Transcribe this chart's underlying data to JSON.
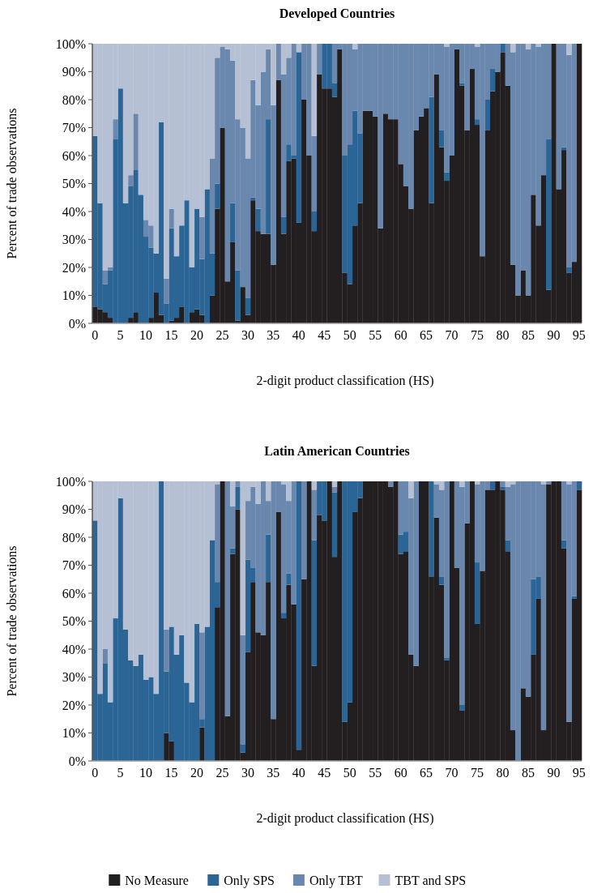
{
  "chart_data": [
    {
      "type": "bar",
      "title": "Developed Countries",
      "xlabel": "2-digit product classification (HS)",
      "ylabel": "Percent of trade observations",
      "stacked": true,
      "categories": [
        "0",
        null,
        null,
        null,
        null,
        "5",
        null,
        null,
        null,
        null,
        "10",
        null,
        null,
        null,
        null,
        "15",
        null,
        null,
        null,
        null,
        "20",
        null,
        null,
        null,
        null,
        "25",
        null,
        null,
        null,
        null,
        "30",
        null,
        null,
        null,
        null,
        "35",
        null,
        null,
        null,
        null,
        "40",
        null,
        null,
        null,
        null,
        "45",
        null,
        null,
        null,
        null,
        "50",
        null,
        null,
        null,
        null,
        "55",
        null,
        null,
        null,
        null,
        "60",
        null,
        null,
        null,
        null,
        "65",
        null,
        null,
        null,
        null,
        "70",
        null,
        null,
        null,
        null,
        "75",
        null,
        null,
        null,
        null,
        "80",
        null,
        null,
        null,
        null,
        "85",
        null,
        null,
        null,
        null,
        "90",
        null,
        null,
        null,
        null,
        "95"
      ],
      "ylim": [
        0,
        100
      ],
      "yticks": [
        {
          "value": 0,
          "label": "0%"
        },
        {
          "value": 10,
          "label": "10%"
        },
        {
          "value": 20,
          "label": "20%"
        },
        {
          "value": 30,
          "label": "30%"
        },
        {
          "value": 40,
          "label": "40%"
        },
        {
          "value": 50,
          "label": "50%"
        },
        {
          "value": 60,
          "label": "60%"
        },
        {
          "value": 70,
          "label": "70%"
        },
        {
          "value": 80,
          "label": "80%"
        },
        {
          "value": 90,
          "label": "90%"
        },
        {
          "value": 100,
          "label": "100%"
        }
      ],
      "series": [
        {
          "color": "#231f20",
          "values": [
            6,
            5,
            4,
            2,
            0,
            0,
            0,
            2,
            4,
            0,
            0,
            2,
            11,
            3,
            0,
            1,
            2,
            6,
            0,
            4,
            5,
            3,
            0,
            10,
            41,
            70,
            15,
            29,
            1,
            13,
            3,
            44,
            33,
            32,
            32,
            21,
            87,
            32,
            58,
            59,
            36,
            80,
            60,
            33,
            89,
            84,
            84,
            81,
            98,
            18,
            14,
            35,
            43,
            76,
            76,
            74,
            34,
            75,
            73,
            73,
            57,
            49,
            41,
            69,
            74,
            77,
            43,
            89,
            63,
            51,
            60,
            98,
            85,
            69,
            91,
            71,
            24,
            69,
            83,
            90,
            97,
            85,
            21,
            10,
            19,
            10,
            46,
            35,
            53,
            12,
            100,
            48,
            62,
            18,
            22,
            100
          ]
        },
        {
          "color": "#2a6595",
          "values": [
            61,
            38,
            10,
            17,
            66,
            84,
            43,
            47,
            51,
            46,
            31,
            25,
            14,
            69,
            7,
            33,
            22,
            29,
            44,
            16,
            36,
            20,
            48,
            15,
            9,
            0,
            0,
            14,
            18,
            0,
            6,
            1,
            8,
            0,
            41,
            0,
            0,
            6,
            6,
            1,
            61,
            0,
            0,
            7,
            0,
            16,
            16,
            5,
            0,
            42,
            50,
            41,
            25,
            0,
            0,
            0,
            0,
            0,
            0,
            0,
            0,
            0,
            0,
            0,
            0,
            0,
            38,
            0,
            6,
            3,
            0,
            0,
            1,
            0,
            0,
            2,
            0,
            11,
            8,
            0,
            3,
            0,
            0,
            0,
            0,
            0,
            0,
            0,
            0,
            54,
            0,
            0,
            1,
            2,
            0,
            0
          ]
        },
        {
          "color": "#6a87ad",
          "values": [
            0,
            0,
            5,
            1,
            7,
            0,
            0,
            4,
            20,
            0,
            6,
            8,
            0,
            0,
            9,
            7,
            0,
            0,
            0,
            0,
            0,
            15,
            0,
            34,
            45,
            29,
            83,
            51,
            54,
            57,
            50,
            42,
            37,
            58,
            25,
            57,
            13,
            51,
            31,
            40,
            0,
            20,
            40,
            27,
            11,
            0,
            0,
            14,
            2,
            40,
            36,
            22,
            32,
            24,
            24,
            26,
            66,
            25,
            27,
            27,
            43,
            51,
            59,
            31,
            26,
            23,
            19,
            11,
            31,
            45,
            40,
            2,
            14,
            31,
            9,
            26,
            76,
            20,
            9,
            10,
            0,
            15,
            76,
            90,
            81,
            88,
            54,
            64,
            47,
            34,
            0,
            52,
            37,
            76,
            78,
            0
          ]
        },
        {
          "color": "#b5c0d4",
          "values": [
            33,
            57,
            81,
            80,
            27,
            16,
            57,
            47,
            25,
            54,
            63,
            65,
            75,
            28,
            84,
            59,
            76,
            65,
            56,
            80,
            59,
            62,
            52,
            41,
            5,
            1,
            2,
            6,
            27,
            30,
            41,
            13,
            22,
            10,
            2,
            22,
            0,
            11,
            5,
            0,
            3,
            0,
            0,
            33,
            0,
            0,
            0,
            0,
            0,
            0,
            0,
            2,
            0,
            0,
            0,
            0,
            0,
            0,
            0,
            0,
            0,
            0,
            0,
            0,
            0,
            0,
            0,
            0,
            0,
            1,
            0,
            0,
            0,
            0,
            0,
            1,
            0,
            0,
            0,
            0,
            0,
            0,
            3,
            0,
            0,
            2,
            0,
            1,
            0,
            0,
            0,
            0,
            0,
            4,
            0,
            0
          ]
        }
      ]
    },
    {
      "type": "bar",
      "title": "Latin American Countries",
      "xlabel": "2-digit product classification (HS)",
      "ylabel": "Percent of trade observations",
      "stacked": true,
      "legend": "bottom",
      "categories": [
        "0",
        null,
        null,
        null,
        null,
        "5",
        null,
        null,
        null,
        null,
        "10",
        null,
        null,
        null,
        null,
        "15",
        null,
        null,
        null,
        null,
        "20",
        null,
        null,
        null,
        null,
        "25",
        null,
        null,
        null,
        null,
        "30",
        null,
        null,
        null,
        null,
        "35",
        null,
        null,
        null,
        null,
        "40",
        null,
        null,
        null,
        null,
        "45",
        null,
        null,
        null,
        null,
        "50",
        null,
        null,
        null,
        null,
        "55",
        null,
        null,
        null,
        null,
        "60",
        null,
        null,
        null,
        null,
        "65",
        null,
        null,
        null,
        null,
        "70",
        null,
        null,
        null,
        null,
        "75",
        null,
        null,
        null,
        null,
        "80",
        null,
        null,
        null,
        null,
        "85",
        null,
        null,
        null,
        null,
        "90",
        null,
        null,
        null,
        null,
        "95"
      ],
      "ylim": [
        0,
        100
      ],
      "yticks": [
        {
          "value": 0,
          "label": "0%"
        },
        {
          "value": 10,
          "label": "10%"
        },
        {
          "value": 20,
          "label": "20%"
        },
        {
          "value": 30,
          "label": "30%"
        },
        {
          "value": 40,
          "label": "40%"
        },
        {
          "value": 50,
          "label": "50%"
        },
        {
          "value": 60,
          "label": "60%"
        },
        {
          "value": 70,
          "label": "70%"
        },
        {
          "value": 80,
          "label": "80%"
        },
        {
          "value": 90,
          "label": "90%"
        },
        {
          "value": 100,
          "label": "100%"
        }
      ],
      "series": [
        {
          "name": "No Measure",
          "color": "#231f20",
          "values": [
            0,
            0,
            0,
            0,
            0,
            0,
            0,
            0,
            0,
            0,
            0,
            0,
            0,
            0,
            10,
            7,
            0,
            0,
            0,
            0,
            0,
            12,
            0,
            0,
            55,
            100,
            16,
            74,
            90,
            3,
            39,
            64,
            46,
            45,
            64,
            15,
            89,
            51,
            63,
            56,
            4,
            65,
            100,
            34,
            88,
            86,
            100,
            73,
            100,
            14,
            21,
            89,
            94,
            100,
            100,
            100,
            100,
            100,
            98,
            100,
            74,
            75,
            38,
            34,
            100,
            100,
            66,
            87,
            63,
            36,
            100,
            69,
            18,
            85,
            100,
            49,
            68,
            97,
            97,
            100,
            97,
            75,
            11,
            0,
            26,
            23,
            38,
            58,
            11,
            99,
            100,
            100,
            76,
            14,
            58,
            97
          ]
        },
        {
          "name": "Only SPS",
          "color": "#2a6595",
          "values": [
            86,
            24,
            35,
            21,
            51,
            94,
            47,
            36,
            34,
            38,
            29,
            30,
            24,
            100,
            22,
            41,
            38,
            45,
            28,
            21,
            49,
            3,
            48,
            79,
            9,
            0,
            0,
            2,
            8,
            3,
            33,
            5,
            0,
            0,
            17,
            0,
            0,
            2,
            4,
            0,
            96,
            0,
            0,
            45,
            12,
            14,
            0,
            23,
            0,
            86,
            79,
            11,
            6,
            0,
            0,
            0,
            0,
            0,
            0,
            0,
            7,
            7,
            0,
            0,
            0,
            0,
            34,
            0,
            3,
            1,
            0,
            0,
            2,
            0,
            0,
            22,
            0,
            0,
            3,
            0,
            1,
            4,
            0,
            0,
            0,
            0,
            27,
            8,
            0,
            0,
            0,
            0,
            3,
            0,
            1,
            3
          ]
        },
        {
          "name": "Only TBT",
          "color": "#6a87ad",
          "values": [
            0,
            0,
            5,
            0,
            0,
            0,
            0,
            0,
            0,
            0,
            0,
            0,
            0,
            0,
            15,
            0,
            0,
            0,
            0,
            0,
            0,
            31,
            0,
            0,
            35,
            0,
            84,
            15,
            2,
            39,
            21,
            29,
            46,
            55,
            12,
            85,
            11,
            46,
            26,
            44,
            0,
            35,
            0,
            18,
            0,
            0,
            0,
            2,
            0,
            0,
            0,
            0,
            0,
            0,
            0,
            0,
            0,
            0,
            2,
            0,
            19,
            18,
            56,
            66,
            0,
            0,
            0,
            12,
            31,
            63,
            0,
            31,
            78,
            15,
            0,
            28,
            32,
            3,
            0,
            0,
            2,
            19,
            88,
            100,
            74,
            77,
            35,
            34,
            88,
            1,
            0,
            0,
            21,
            85,
            41,
            0
          ]
        },
        {
          "name": "TBT and SPS",
          "color": "#b5c0d4",
          "values": [
            14,
            76,
            60,
            79,
            49,
            6,
            53,
            64,
            66,
            62,
            71,
            70,
            76,
            0,
            53,
            52,
            62,
            55,
            72,
            79,
            51,
            54,
            52,
            21,
            1,
            0,
            0,
            9,
            0,
            55,
            7,
            2,
            8,
            0,
            7,
            0,
            0,
            1,
            7,
            0,
            0,
            0,
            0,
            3,
            0,
            0,
            0,
            2,
            0,
            0,
            0,
            0,
            0,
            0,
            0,
            0,
            0,
            0,
            0,
            0,
            0,
            0,
            6,
            0,
            0,
            0,
            0,
            1,
            3,
            0,
            0,
            0,
            2,
            0,
            0,
            1,
            0,
            0,
            0,
            0,
            0,
            2,
            1,
            0,
            0,
            0,
            0,
            0,
            1,
            0,
            0,
            0,
            0,
            1,
            0,
            0
          ]
        }
      ]
    }
  ]
}
